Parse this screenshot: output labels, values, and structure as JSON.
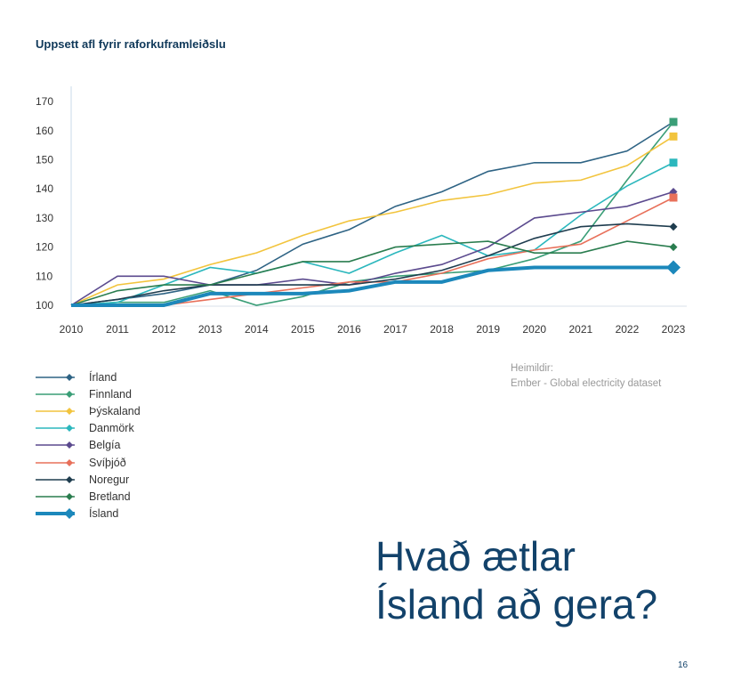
{
  "page": {
    "headline_line1": "Hvað ætlar",
    "headline_line2": "Ísland að gera?",
    "page_number": "16",
    "source_label": "Heimildir:",
    "source_text": "Ember - Global electricity dataset"
  },
  "chart_data": {
    "type": "line",
    "title": "Uppsett afl fyrir raforkuframleiðslu",
    "x": [
      2010,
      2011,
      2012,
      2013,
      2014,
      2015,
      2016,
      2017,
      2018,
      2019,
      2020,
      2021,
      2022,
      2023
    ],
    "y_ticks": [
      100,
      110,
      120,
      130,
      140,
      150,
      160,
      170
    ],
    "ylim": [
      100,
      172
    ],
    "legend_placement": "bottom-left",
    "grid": false,
    "series": [
      {
        "name": "Írland",
        "color": "#2e6384",
        "values": [
          100,
          102,
          104,
          107,
          112,
          121,
          126,
          134,
          139,
          146,
          149,
          149,
          153,
          163
        ]
      },
      {
        "name": "Finnland",
        "color": "#3a9e77",
        "values": [
          100,
          101,
          101,
          105,
          100,
          103,
          108,
          110,
          111,
          112,
          116,
          122,
          143,
          163
        ]
      },
      {
        "name": "Þýskaland",
        "color": "#f2c43d",
        "values": [
          100,
          107,
          109,
          114,
          118,
          124,
          129,
          132,
          136,
          138,
          142,
          143,
          148,
          158
        ]
      },
      {
        "name": "Danmörk",
        "color": "#2bb7bd",
        "values": [
          100,
          101,
          107,
          113,
          111,
          115,
          111,
          118,
          124,
          117,
          119,
          131,
          141,
          149
        ]
      },
      {
        "name": "Belgía",
        "color": "#5b4a8e",
        "values": [
          100,
          110,
          110,
          107,
          107,
          109,
          107,
          111,
          114,
          120,
          130,
          132,
          134,
          139
        ]
      },
      {
        "name": "Svíþjóð",
        "color": "#e8705a",
        "values": [
          100,
          100,
          100,
          102,
          104,
          106,
          108,
          108,
          111,
          116,
          119,
          121,
          129,
          137
        ]
      },
      {
        "name": "Noregur",
        "color": "#1f3d4f",
        "values": [
          100,
          102,
          105,
          107,
          107,
          107,
          107,
          109,
          112,
          117,
          123,
          127,
          128,
          127
        ]
      },
      {
        "name": "Bretland",
        "color": "#2a7d4f",
        "values": [
          100,
          105,
          107,
          107,
          111,
          115,
          115,
          120,
          121,
          122,
          118,
          118,
          122,
          120
        ]
      },
      {
        "name": "Ísland",
        "color": "#1c88bb",
        "values": [
          100,
          100,
          100,
          104,
          104,
          104,
          105,
          108,
          108,
          112,
          113,
          113,
          113,
          113
        ]
      }
    ]
  }
}
